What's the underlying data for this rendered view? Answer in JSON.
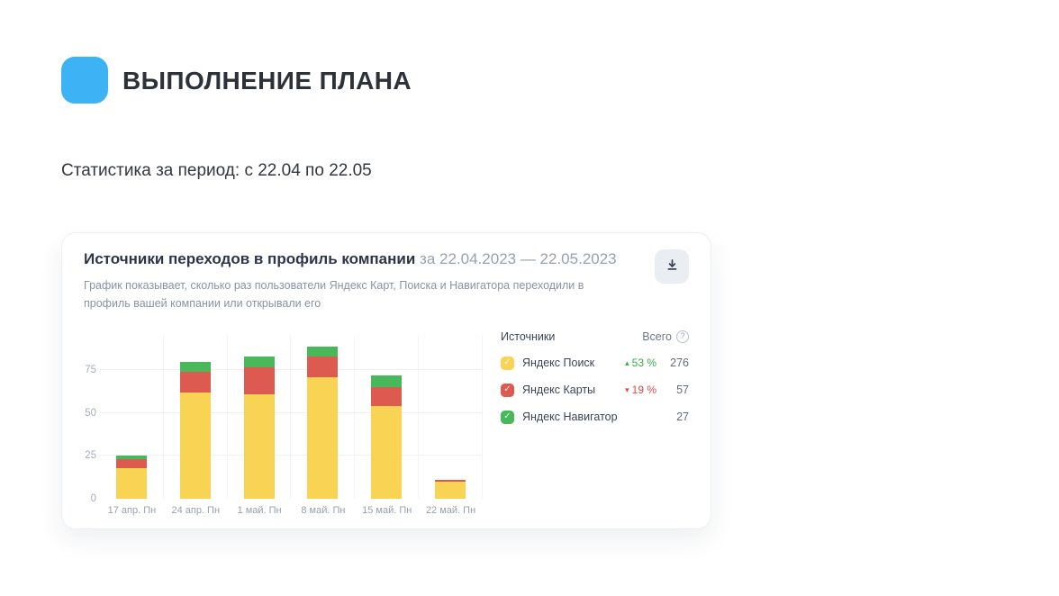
{
  "page": {
    "title": "ВЫПОЛНЕНИЕ ПЛАНА",
    "period_line": "Статистика за период: с 22.04 по 22.05"
  },
  "colors": {
    "accent": "#3db3f5",
    "up": "#35ad47",
    "down": "#e04a40",
    "search": "#f9d354",
    "maps": "#dc5a50",
    "navigator": "#48b85a"
  },
  "icons": {
    "help": "?",
    "check": "✓",
    "up_triangle": "▴",
    "down_triangle": "▾"
  },
  "card": {
    "title": "Источники переходов в профиль компании",
    "period": "за 22.04.2023 — 22.05.2023",
    "description": "График показывает, сколько раз пользователи Яндекс Карт, Поиска и Навигатора переходили в профиль вашей компании или открывали его"
  },
  "chart_data": {
    "type": "bar",
    "stacked": true,
    "title": "Источники переходов в профиль компании за 22.04.2023 — 22.05.2023",
    "categories": [
      "17 апр. Пн",
      "24 апр. Пн",
      "1 май. Пн",
      "8 май. Пн",
      "15 май. Пн",
      "22 май. Пн"
    ],
    "series": [
      {
        "name": "Яндекс Поиск",
        "color": "#f9d354",
        "values": [
          18,
          62,
          61,
          71,
          54,
          10
        ]
      },
      {
        "name": "Яндекс Карты",
        "color": "#dc5a50",
        "values": [
          5,
          12,
          16,
          12,
          11,
          1
        ]
      },
      {
        "name": "Яндекс Навигатор",
        "color": "#48b85a",
        "values": [
          2,
          6,
          6,
          6,
          7,
          0
        ]
      }
    ],
    "y_ticks": [
      0,
      25,
      50,
      75
    ],
    "ylim": [
      0,
      95
    ],
    "grid": true,
    "legend_position": "right",
    "legend": {
      "col_source": "Источники",
      "col_total": "Всего",
      "rows": [
        {
          "name": "Яндекс Поиск",
          "change_pct": "53 %",
          "direction": "up",
          "total": 276
        },
        {
          "name": "Яндекс Карты",
          "change_pct": "19 %",
          "direction": "down",
          "total": 57
        },
        {
          "name": "Яндекс Навигатор",
          "change_pct": null,
          "direction": "none",
          "total": 27
        }
      ]
    }
  }
}
